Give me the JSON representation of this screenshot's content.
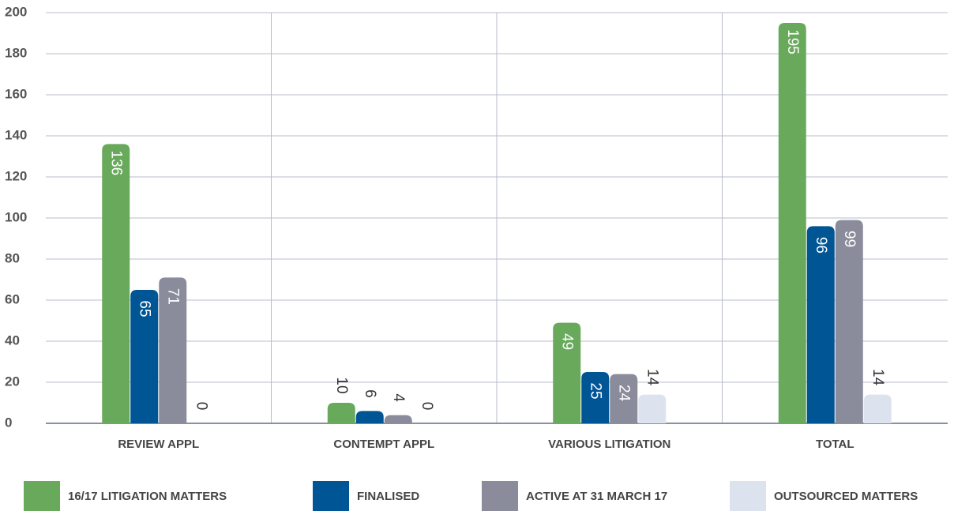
{
  "chart_data": {
    "type": "bar",
    "categories": [
      "REVIEW APPL",
      "CONTEMPT APPL",
      "VARIOUS LITIGATION",
      "TOTAL"
    ],
    "series": [
      {
        "name": "16/17 LITIGATION MATTERS",
        "color": "#68a95c",
        "values": [
          136,
          10,
          49,
          195
        ]
      },
      {
        "name": "FINALISED",
        "color": "#005595",
        "values": [
          65,
          6,
          25,
          96
        ]
      },
      {
        "name": "ACTIVE AT 31 MARCH 17",
        "color": "#8a8c9c",
        "values": [
          71,
          4,
          24,
          99
        ]
      },
      {
        "name": "OUTSOURCED MATTERS",
        "color": "#dde3ee",
        "values": [
          0,
          0,
          14,
          14
        ]
      }
    ],
    "ylim": [
      0,
      200
    ],
    "yticks": [
      0,
      20,
      40,
      60,
      80,
      100,
      120,
      140,
      160,
      180,
      200
    ],
    "grid": true,
    "legend": "bottom"
  }
}
